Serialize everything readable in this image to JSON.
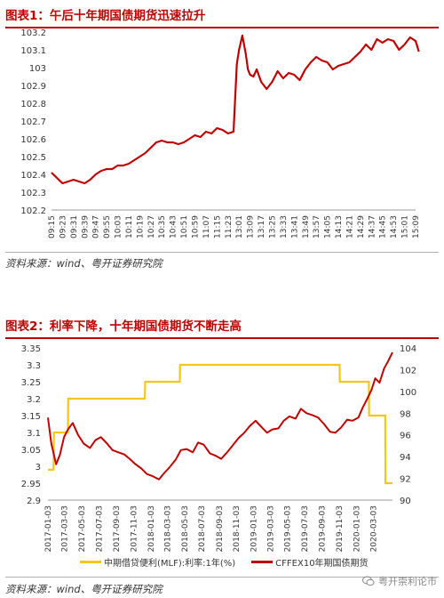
{
  "figure1": {
    "title": "图表1：午后十年期国债期货迅速拉升",
    "source": "资料来源：wind、粤开证券研究院"
  },
  "figure2": {
    "title": "图表2：利率下降，十年期国债期货不断走高",
    "source": "资料来源：wind、粤开证券研究院"
  },
  "watermark": {
    "text": "粤开崇利论市",
    "icon": "wechat-icon"
  },
  "colors": {
    "title": "#c00000",
    "futures": "#c00000",
    "mlf": "#f5c518"
  },
  "chart_data": [
    {
      "type": "line",
      "title": "",
      "xlabel": "",
      "ylabel": "",
      "ylim": [
        102.2,
        103.2
      ],
      "yticks": [
        "102.2",
        "102.3",
        "102.4",
        "102.5",
        "102.6",
        "102.7",
        "102.8",
        "102.9",
        "103",
        "103.1",
        "103.2"
      ],
      "xticks": [
        "09:15",
        "09:23",
        "09:31",
        "09:39",
        "09:47",
        "09:55",
        "10:03",
        "10:11",
        "10:19",
        "10:27",
        "10:35",
        "10:43",
        "10:51",
        "10:59",
        "11:07",
        "11:15",
        "11:23",
        "13:01",
        "13:09",
        "13:17",
        "13:25",
        "13:33",
        "13:41",
        "13:49",
        "13:57",
        "14:05",
        "14:13",
        "14:21",
        "14:29",
        "14:37",
        "14:45",
        "14:53",
        "15:01",
        "15:09"
      ],
      "grid": false,
      "series": [
        {
          "name": "",
          "x": [
            0,
            0.5,
            1,
            1.5,
            2,
            2.5,
            3,
            3.5,
            4,
            4.5,
            5,
            5.5,
            6,
            6.5,
            7,
            7.5,
            8,
            8.5,
            9,
            9.5,
            10,
            10.5,
            11,
            11.5,
            12,
            12.5,
            13,
            13.5,
            14,
            14.5,
            15,
            15.5,
            16,
            16.5,
            16.8,
            17,
            17.3,
            17.6,
            17.8,
            18,
            18.3,
            18.6,
            19,
            19.5,
            20,
            20.5,
            21,
            21.5,
            22,
            22.5,
            23,
            23.5,
            24,
            24.5,
            25,
            25.5,
            26,
            26.5,
            27,
            27.5,
            28,
            28.5,
            29,
            29.5,
            30,
            30.5,
            31,
            31.5,
            32,
            32.5,
            33,
            33.3
          ],
          "y": [
            102.41,
            102.38,
            102.35,
            102.36,
            102.37,
            102.36,
            102.35,
            102.37,
            102.4,
            102.42,
            102.43,
            102.43,
            102.45,
            102.45,
            102.46,
            102.48,
            102.5,
            102.52,
            102.55,
            102.58,
            102.59,
            102.58,
            102.58,
            102.57,
            102.58,
            102.6,
            102.62,
            102.61,
            102.64,
            102.63,
            102.66,
            102.65,
            102.63,
            102.64,
            103.02,
            103.1,
            103.18,
            103.08,
            102.99,
            102.96,
            102.95,
            102.99,
            102.92,
            102.88,
            102.92,
            102.98,
            102.94,
            102.97,
            102.96,
            102.93,
            102.99,
            103.03,
            103.06,
            103.04,
            103.03,
            102.99,
            103.01,
            103.02,
            103.03,
            103.06,
            103.09,
            103.13,
            103.1,
            103.16,
            103.14,
            103.16,
            103.15,
            103.1,
            103.13,
            103.17,
            103.15,
            103.09
          ]
        }
      ]
    },
    {
      "type": "line",
      "title": "",
      "xlabel": "",
      "ylabel": "",
      "xticks": [
        "2017-01-03",
        "2017-03-03",
        "2017-05-03",
        "2017-07-03",
        "2017-09-03",
        "2017-11-03",
        "2018-01-03",
        "2018-03-03",
        "2018-05-03",
        "2018-07-03",
        "2018-09-03",
        "2018-11-03",
        "2019-01-03",
        "2019-03-03",
        "2019-05-03",
        "2019-07-03",
        "2019-09-03",
        "2019-11-03",
        "2020-01-03",
        "2020-03-03"
      ],
      "y_left": {
        "ylim": [
          2.9,
          3.35
        ],
        "ticks": [
          "2.9",
          "2.95",
          "3",
          "3.05",
          "3.1",
          "3.15",
          "3.2",
          "3.25",
          "3.3",
          "3.35"
        ]
      },
      "y_right": {
        "ylim": [
          90,
          104
        ],
        "ticks": [
          "90",
          "92",
          "94",
          "96",
          "98",
          "100",
          "102",
          "104"
        ]
      },
      "grid": false,
      "legend": "bottom",
      "series": [
        {
          "name": "中期借贷便利(MLF):利率:1年(%)",
          "axis": "left",
          "x": [
            "2017-01-03",
            "2017-01-23",
            "2017-01-24",
            "2017-03-15",
            "2017-03-16",
            "2017-12-13",
            "2017-12-14",
            "2018-04-16",
            "2018-04-17",
            "2019-11-04",
            "2019-11-05",
            "2020-02-16",
            "2020-02-17",
            "2020-04-14",
            "2020-04-15",
            "2020-05-10"
          ],
          "y": [
            2.99,
            2.99,
            3.1,
            3.1,
            3.2,
            3.2,
            3.25,
            3.25,
            3.3,
            3.3,
            3.25,
            3.25,
            3.15,
            3.15,
            2.95,
            2.95
          ]
        },
        {
          "name": "CFFEX10年期国债期货",
          "axis": "right",
          "x": [
            "2017-01-03",
            "2017-01-15",
            "2017-02-01",
            "2017-02-15",
            "2017-03-01",
            "2017-03-15",
            "2017-04-01",
            "2017-04-20",
            "2017-05-10",
            "2017-06-01",
            "2017-06-20",
            "2017-07-10",
            "2017-08-01",
            "2017-08-20",
            "2017-09-10",
            "2017-10-01",
            "2017-10-20",
            "2017-11-10",
            "2017-12-01",
            "2017-12-20",
            "2018-01-10",
            "2018-02-01",
            "2018-02-20",
            "2018-03-10",
            "2018-04-01",
            "2018-04-20",
            "2018-05-10",
            "2018-06-01",
            "2018-06-20",
            "2018-07-10",
            "2018-08-01",
            "2018-08-20",
            "2018-09-10",
            "2018-10-01",
            "2018-10-20",
            "2018-11-10",
            "2018-12-01",
            "2018-12-20",
            "2019-01-10",
            "2019-02-01",
            "2019-02-20",
            "2019-03-10",
            "2019-04-01",
            "2019-04-20",
            "2019-05-10",
            "2019-06-01",
            "2019-06-20",
            "2019-07-10",
            "2019-08-01",
            "2019-08-20",
            "2019-09-10",
            "2019-10-01",
            "2019-10-20",
            "2019-11-10",
            "2019-12-01",
            "2019-12-20",
            "2020-01-10",
            "2020-01-25",
            "2020-02-10",
            "2020-02-25",
            "2020-03-10",
            "2020-03-25",
            "2020-04-10",
            "2020-04-25",
            "2020-05-10"
          ],
          "y": [
            97.6,
            95.2,
            93.3,
            94.2,
            95.8,
            96.5,
            97.1,
            96.0,
            95.2,
            94.8,
            95.5,
            95.8,
            95.2,
            94.6,
            94.4,
            94.2,
            93.8,
            93.3,
            92.9,
            92.4,
            92.2,
            91.9,
            92.5,
            93.0,
            93.7,
            94.6,
            94.7,
            94.4,
            95.3,
            95.1,
            94.3,
            94.1,
            93.8,
            94.4,
            95.0,
            95.7,
            96.2,
            96.8,
            97.3,
            96.7,
            96.2,
            96.5,
            96.6,
            97.3,
            97.7,
            97.5,
            98.4,
            98.0,
            97.8,
            97.6,
            97.0,
            96.3,
            96.2,
            96.7,
            97.4,
            97.3,
            97.6,
            98.5,
            99.3,
            100.1,
            101.2,
            100.8,
            102.1,
            102.8,
            103.6
          ]
        }
      ]
    }
  ]
}
